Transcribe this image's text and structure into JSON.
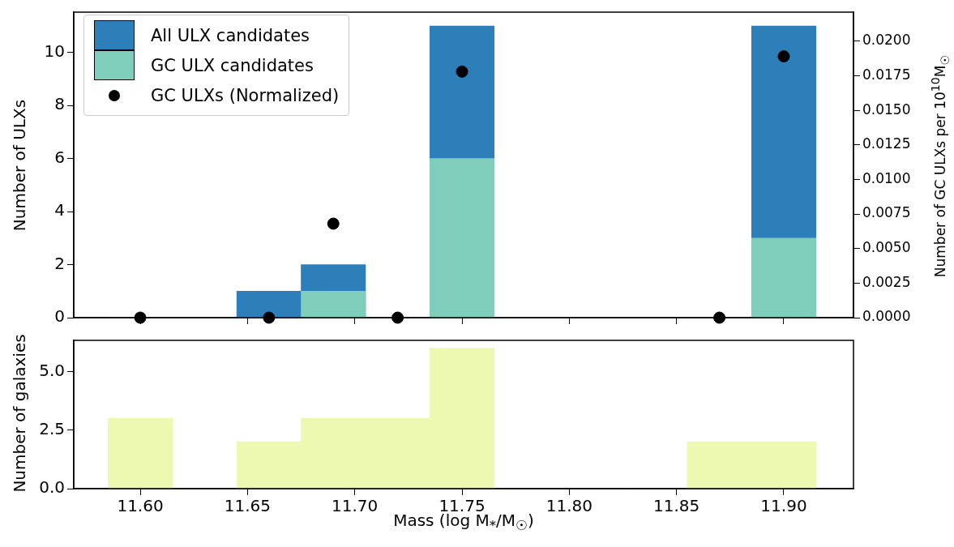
{
  "chart_data": [
    {
      "type": "histogram",
      "ylabel": "Number of ULXs",
      "y2label": "Number of GC ULXs per 10$^{10}$M$_{☉}$",
      "bins": [
        11.585,
        11.615,
        11.645,
        11.675,
        11.705,
        11.735,
        11.765,
        11.795,
        11.825,
        11.855,
        11.885,
        11.915
      ],
      "series": [
        {
          "name": "All ULX candidates",
          "color": "#2c7fb8",
          "values": [
            0,
            0,
            1,
            2,
            0,
            11,
            0,
            0,
            0,
            0,
            11
          ]
        },
        {
          "name": "GC ULX candidates",
          "color": "#7fcdbb",
          "values": [
            0,
            0,
            0,
            1,
            0,
            6,
            0,
            0,
            0,
            0,
            3
          ]
        },
        {
          "name": "GC ULXs (Normalized)",
          "type": "scatter",
          "axis": "y2",
          "color": "#000000",
          "x": [
            11.6,
            11.66,
            11.69,
            11.72,
            11.75,
            11.87,
            11.9
          ],
          "values": [
            0,
            0,
            0.0068,
            0,
            0.0178,
            0,
            0.0189
          ]
        }
      ],
      "xlim": [
        11.569,
        11.9325
      ],
      "xticks": [
        11.6,
        11.65,
        11.7,
        11.75,
        11.8,
        11.85,
        11.9
      ],
      "ylim": [
        0,
        11.52
      ],
      "yticks": [
        0,
        2,
        4,
        6,
        8,
        10
      ],
      "y2lim": [
        0,
        0.0221
      ],
      "y2ticks": [
        {
          "value": 0,
          "label": "0.0000"
        },
        {
          "value": 0.0025,
          "label": "0.0025"
        },
        {
          "value": 0.005,
          "label": "0.0050"
        },
        {
          "value": 0.0075,
          "label": "0.0075"
        },
        {
          "value": 0.01,
          "label": "0.0100"
        },
        {
          "value": 0.0125,
          "label": "0.0125"
        },
        {
          "value": 0.015,
          "label": "0.0150"
        },
        {
          "value": 0.0175,
          "label": "0.0175"
        },
        {
          "value": 0.02,
          "label": "0.0200"
        }
      ],
      "tick_labels": "y",
      "legend": "top left",
      "marker": "circle",
      "grid": false
    },
    {
      "type": "histogram",
      "xlabel": "Mass (log M$_{*}$/M$_{☉}$)",
      "ylabel": "Number of galaxies",
      "bins": [
        11.585,
        11.615,
        11.645,
        11.675,
        11.705,
        11.735,
        11.765,
        11.795,
        11.825,
        11.855,
        11.885,
        11.915
      ],
      "series": [
        {
          "color": "#edf8b1",
          "values": [
            3,
            0,
            2,
            3,
            3,
            6,
            0,
            0,
            0,
            2,
            2
          ]
        }
      ],
      "xlim": [
        11.569,
        11.9325
      ],
      "xticks": [
        {
          "value": 11.6,
          "label": "11.60"
        },
        {
          "value": 11.65,
          "label": "11.65"
        },
        {
          "value": 11.7,
          "label": "11.70"
        },
        {
          "value": 11.75,
          "label": "11.75"
        },
        {
          "value": 11.8,
          "label": "11.80"
        },
        {
          "value": 11.85,
          "label": "11.85"
        },
        {
          "value": 11.9,
          "label": "11.90"
        }
      ],
      "ylim": [
        0,
        6.33
      ],
      "yticks": [
        {
          "value": 0,
          "label": "0.0"
        },
        {
          "value": 2.5,
          "label": "2.5"
        },
        {
          "value": 5,
          "label": "5.0"
        }
      ],
      "grid": false
    }
  ]
}
